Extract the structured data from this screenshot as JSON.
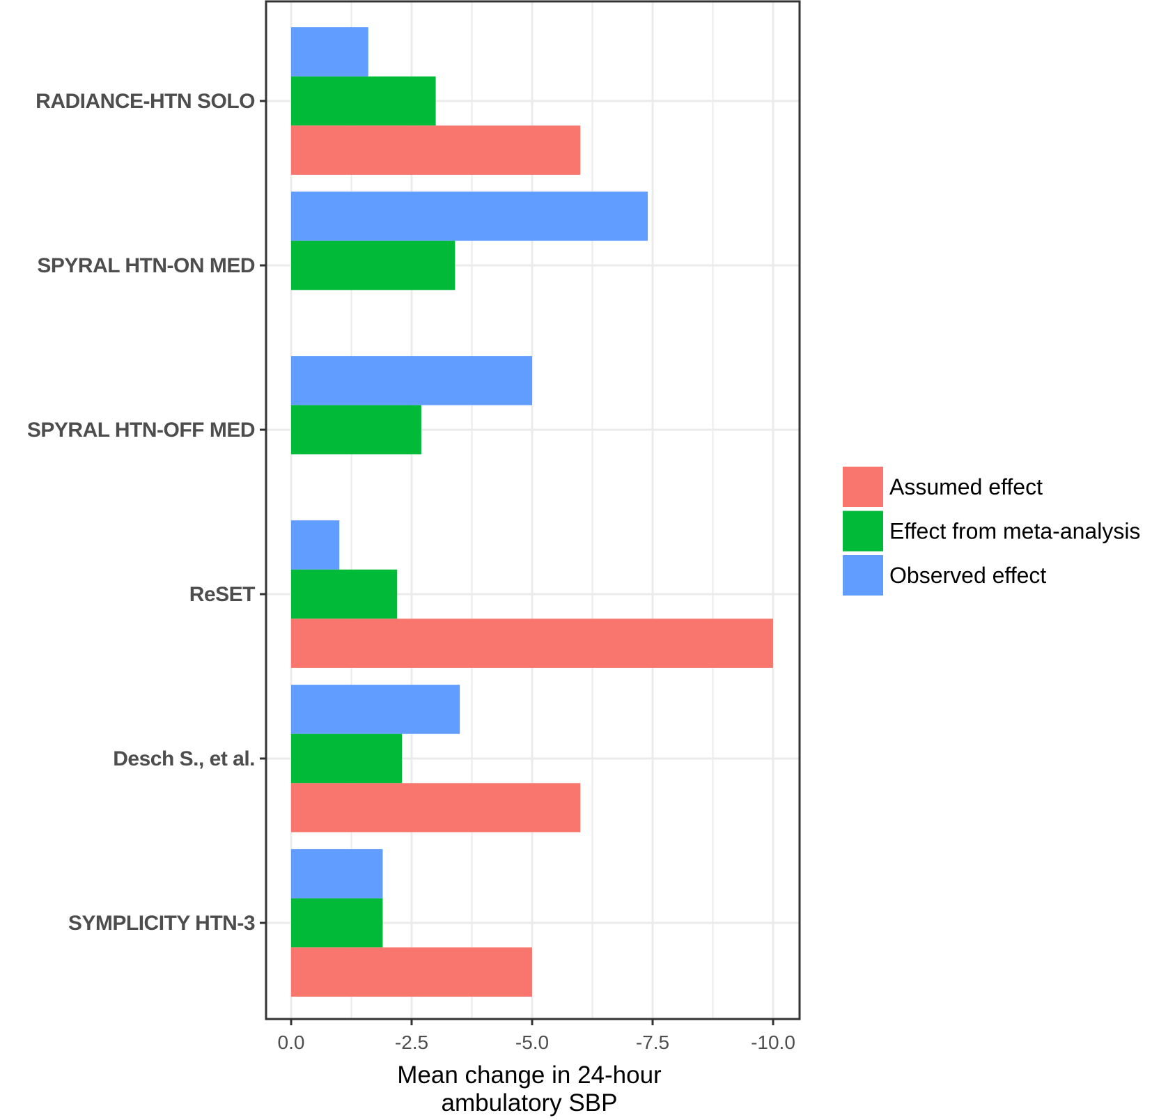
{
  "chart_data": {
    "type": "bar",
    "orientation": "horizontal",
    "categories": [
      "RADIANCE-HTN  SOLO",
      "SPYRAL HTN-ON MED",
      "SPYRAL HTN-OFF MED",
      "ReSET",
      "Desch S., et al.",
      "SYMPLICITY HTN-3"
    ],
    "series": [
      {
        "name": "Assumed effect",
        "color": "#F8766D",
        "values": [
          -6.0,
          null,
          null,
          -10.0,
          -6.0,
          -5.0
        ]
      },
      {
        "name": "Effect from meta-analysis",
        "color": "#00BA38",
        "values": [
          -3.0,
          -3.4,
          -2.7,
          -2.2,
          -2.3,
          -1.9
        ]
      },
      {
        "name": "Observed effect",
        "color": "#619CFF",
        "values": [
          -1.6,
          -7.4,
          -5.0,
          -1.0,
          -3.5,
          -1.9
        ]
      }
    ],
    "xlabel": [
      "Mean change in 24-hour",
      "ambulatory SBP"
    ],
    "ylabel": "",
    "xlim": [
      0.5,
      -10.5
    ],
    "x_reversed": true,
    "xticks": [
      0,
      -2.5,
      -5,
      -7.5,
      -10
    ],
    "xtick_labels": [
      "0.0",
      "-2.5",
      "-5.0",
      "-7.5",
      "-10.0"
    ],
    "grid": true,
    "legend_position": "right"
  }
}
